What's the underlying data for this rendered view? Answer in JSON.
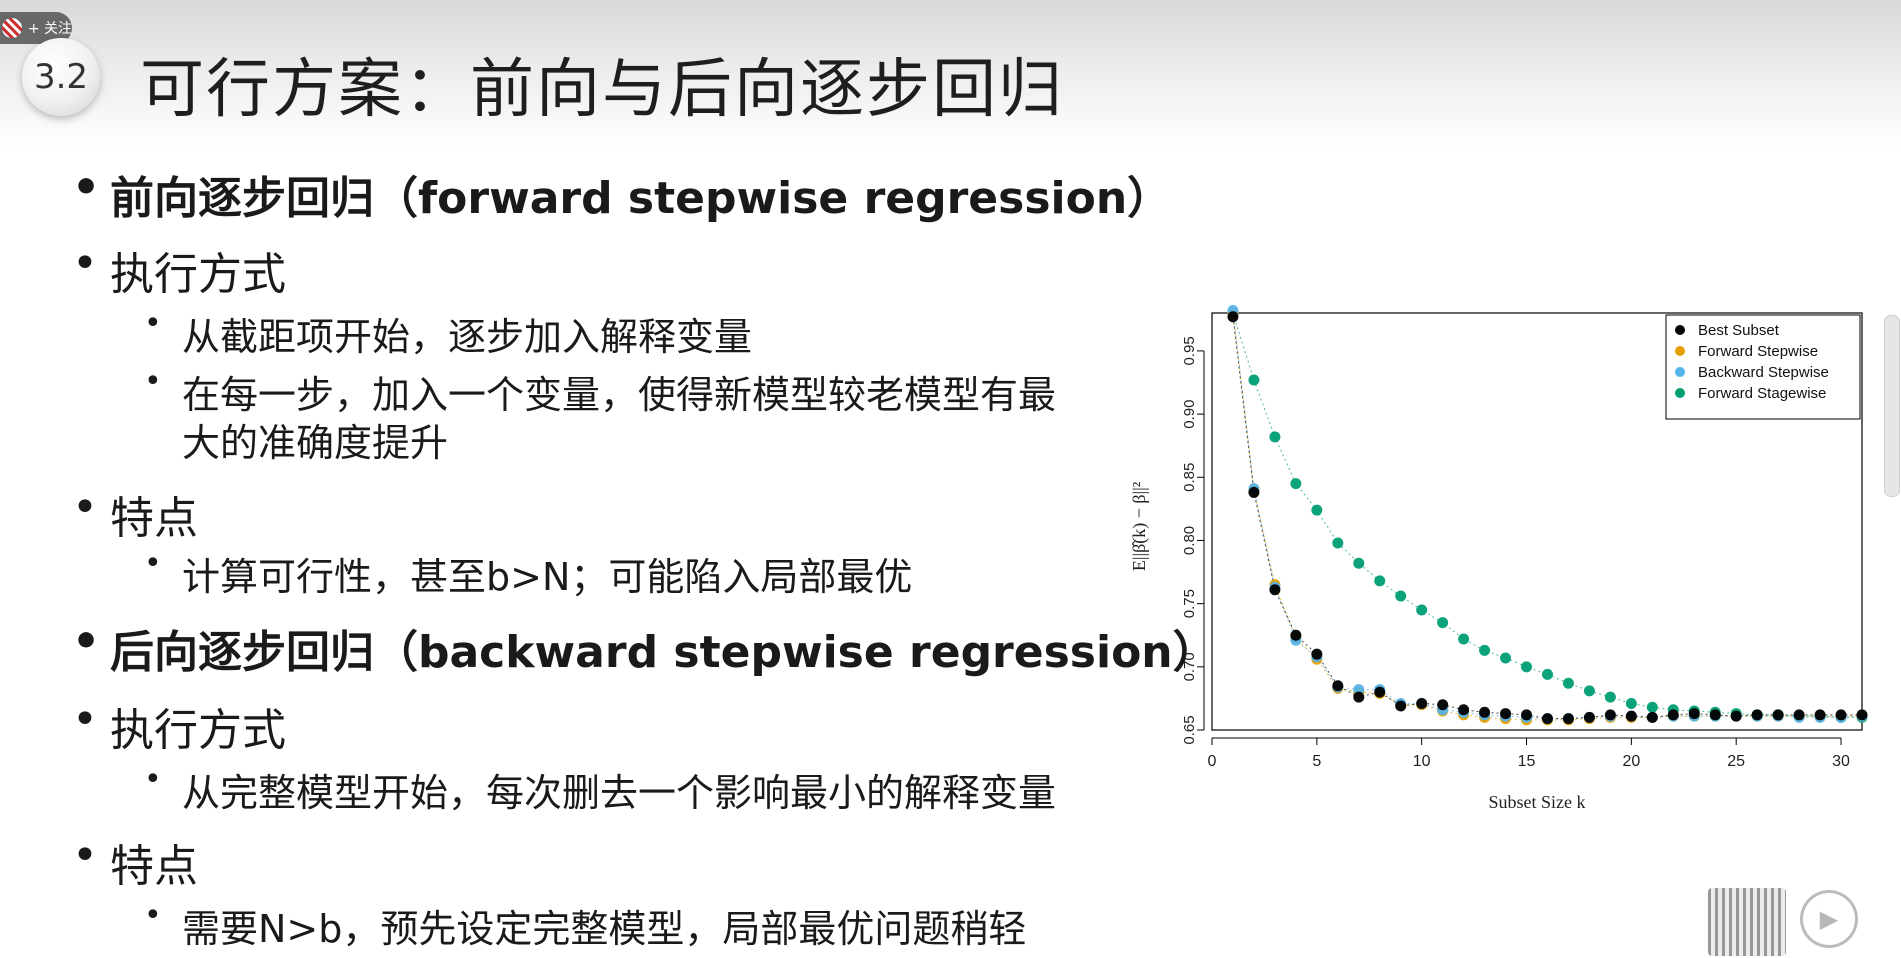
{
  "overlay": {
    "follow_label": "+ 关注"
  },
  "slide": {
    "section_number": "3.2",
    "title": "可行方案：前向与后向逐步回归",
    "bullets": [
      "前向逐步回归（forward stepwise regression）",
      "执行方式",
      "从截距项开始，逐步加入解释变量",
      "在每一步，加入一个变量，使得新模型较老模型有最",
      "大的准确度提升",
      "特点",
      "计算可行性，甚至b>N；可能陷入局部最优",
      "后向逐步回归（backward stepwise regression）",
      "执行方式",
      "从完整模型开始，每次删去一个影响最小的解释变量",
      "特点",
      "需要N>b，预先设定完整模型，局部最优问题稍轻"
    ]
  },
  "chart_data": {
    "type": "scatter",
    "title": "",
    "xlabel": "Subset Size k",
    "ylabel": "E||β̂(k) − β||²",
    "xlim": [
      0,
      31
    ],
    "ylim": [
      0.65,
      0.98
    ],
    "x_ticks": [
      "0",
      "5",
      "10",
      "15",
      "20",
      "25",
      "30"
    ],
    "y_ticks": [
      "0.65",
      "0.70",
      "0.75",
      "0.80",
      "0.85",
      "0.90",
      "0.95"
    ],
    "legend_position": "top-right",
    "series": [
      {
        "name": "Best Subset",
        "color": "#000000",
        "x": [
          1,
          2,
          3,
          4,
          5,
          6,
          7,
          8,
          9,
          10,
          11,
          12,
          13,
          14,
          15,
          16,
          17,
          18,
          19,
          20,
          21,
          22,
          23,
          24,
          25,
          26,
          27,
          28,
          29,
          30,
          31
        ],
        "y": [
          0.977,
          0.838,
          0.761,
          0.725,
          0.71,
          0.685,
          0.676,
          0.68,
          0.669,
          0.671,
          0.67,
          0.666,
          0.664,
          0.663,
          0.662,
          0.659,
          0.659,
          0.66,
          0.662,
          0.661,
          0.66,
          0.662,
          0.663,
          0.662,
          0.661,
          0.662,
          0.662,
          0.662,
          0.662,
          0.662,
          0.662
        ]
      },
      {
        "name": "Forward Stepwise",
        "color": "#e69f00",
        "x": [
          1,
          2,
          3,
          4,
          5,
          6,
          7,
          8,
          9,
          10,
          11,
          12,
          13,
          14,
          15,
          16,
          17,
          18,
          19,
          20,
          21,
          22,
          23,
          24,
          25,
          26,
          27,
          28,
          29,
          30,
          31
        ],
        "y": [
          0.98,
          0.84,
          0.765,
          0.723,
          0.706,
          0.683,
          0.68,
          0.679,
          0.67,
          0.67,
          0.665,
          0.662,
          0.66,
          0.659,
          0.658,
          0.658,
          0.658,
          0.659,
          0.66,
          0.66,
          0.66,
          0.661,
          0.661,
          0.661,
          0.661,
          0.661,
          0.661,
          0.661,
          0.661,
          0.661,
          0.661
        ]
      },
      {
        "name": "Backward Stepwise",
        "color": "#56b4e9",
        "x": [
          1,
          2,
          3,
          4,
          5,
          6,
          7,
          8,
          9,
          10,
          11,
          12,
          13,
          14,
          15,
          16,
          17,
          18,
          19,
          20,
          21,
          22,
          23,
          24,
          25,
          26,
          27,
          28,
          29,
          30,
          31
        ],
        "y": [
          0.982,
          0.841,
          0.763,
          0.721,
          0.708,
          0.684,
          0.682,
          0.682,
          0.671,
          0.671,
          0.666,
          0.664,
          0.662,
          0.661,
          0.66,
          0.659,
          0.659,
          0.66,
          0.661,
          0.661,
          0.66,
          0.661,
          0.661,
          0.661,
          0.661,
          0.661,
          0.661,
          0.66,
          0.66,
          0.66,
          0.661
        ]
      },
      {
        "name": "Forward Stagewise",
        "color": "#009e73",
        "x": [
          1,
          2,
          3,
          4,
          5,
          6,
          7,
          8,
          9,
          10,
          11,
          12,
          13,
          14,
          15,
          16,
          17,
          18,
          19,
          20,
          21,
          22,
          23,
          24,
          25,
          26,
          27,
          28,
          29,
          30,
          31
        ],
        "y": [
          0.98,
          0.927,
          0.882,
          0.845,
          0.824,
          0.798,
          0.782,
          0.768,
          0.756,
          0.745,
          0.735,
          0.722,
          0.713,
          0.707,
          0.7,
          0.694,
          0.687,
          0.681,
          0.676,
          0.671,
          0.668,
          0.666,
          0.665,
          0.664,
          0.663,
          0.662,
          0.662,
          0.661,
          0.661,
          0.66,
          0.66
        ]
      }
    ]
  }
}
